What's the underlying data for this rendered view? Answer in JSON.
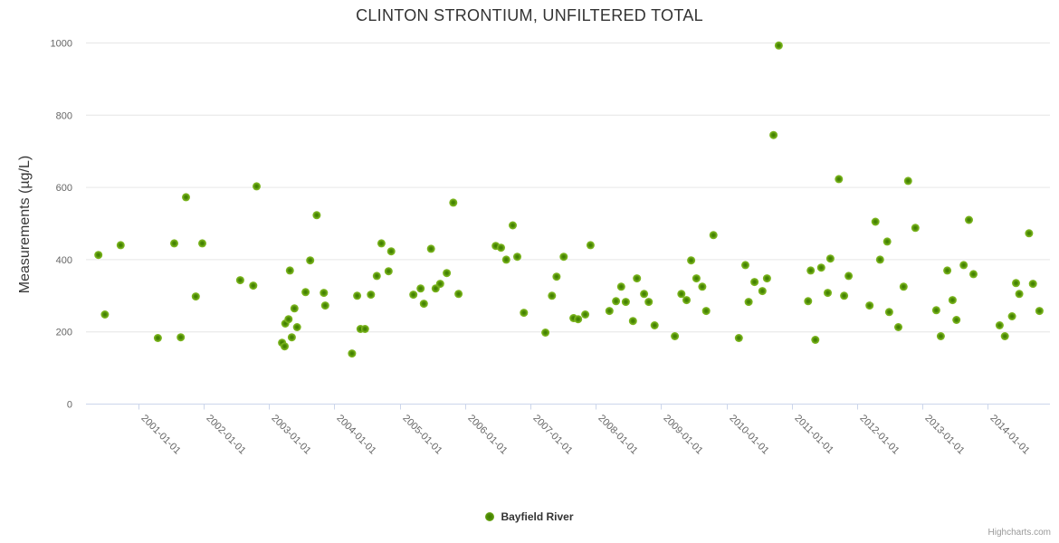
{
  "colors": {
    "background": "#ffffff",
    "grid": "#e6e6e6",
    "axis_line": "#ccd6eb",
    "tick_label": "#666666",
    "title_text": "#333333",
    "marker_outer": "#7cb61f",
    "marker_inner": "#3c7a00",
    "credits_text": "#999999"
  },
  "credits": {
    "label": "Highcharts.com"
  },
  "chart_data": {
    "type": "scatter",
    "title": "CLINTON STRONTIUM, UNFILTERED TOTAL",
    "xlabel": "",
    "ylabel": "Measurements (µg/L)",
    "ylim": [
      0,
      1000
    ],
    "yticks": [
      0,
      200,
      400,
      600,
      800,
      1000
    ],
    "grid": true,
    "legend_position": "bottom-center",
    "xaxis": {
      "min": 2000.2,
      "max": 2014.95,
      "ticks": [
        {
          "year": 2001,
          "label": "2001-01-01"
        },
        {
          "year": 2002,
          "label": "2002-01-01"
        },
        {
          "year": 2003,
          "label": "2003-01-01"
        },
        {
          "year": 2004,
          "label": "2004-01-01"
        },
        {
          "year": 2005,
          "label": "2005-01-01"
        },
        {
          "year": 2006,
          "label": "2006-01-01"
        },
        {
          "year": 2007,
          "label": "2007-01-01"
        },
        {
          "year": 2008,
          "label": "2008-01-01"
        },
        {
          "year": 2009,
          "label": "2009-01-01"
        },
        {
          "year": 2010,
          "label": "2010-01-01"
        },
        {
          "year": 2011,
          "label": "2011-01-01"
        },
        {
          "year": 2012,
          "label": "2012-01-01"
        },
        {
          "year": 2013,
          "label": "2013-01-01"
        },
        {
          "year": 2014,
          "label": "2014-01-01"
        }
      ]
    },
    "series": [
      {
        "name": "Bayfield River",
        "points": [
          [
            2000.39,
            413
          ],
          [
            2000.49,
            248
          ],
          [
            2000.73,
            440
          ],
          [
            2001.3,
            183
          ],
          [
            2001.55,
            445
          ],
          [
            2001.65,
            185
          ],
          [
            2001.73,
            573
          ],
          [
            2001.88,
            298
          ],
          [
            2001.98,
            445
          ],
          [
            2002.56,
            343
          ],
          [
            2002.76,
            328
          ],
          [
            2002.81,
            603
          ],
          [
            2003.2,
            170
          ],
          [
            2003.24,
            160
          ],
          [
            2003.25,
            223
          ],
          [
            2003.3,
            235
          ],
          [
            2003.32,
            370
          ],
          [
            2003.35,
            185
          ],
          [
            2003.39,
            265
          ],
          [
            2003.43,
            213
          ],
          [
            2003.56,
            310
          ],
          [
            2003.63,
            398
          ],
          [
            2003.73,
            523
          ],
          [
            2003.84,
            308
          ],
          [
            2003.86,
            273
          ],
          [
            2004.27,
            140
          ],
          [
            2004.35,
            300
          ],
          [
            2004.4,
            208
          ],
          [
            2004.47,
            208
          ],
          [
            2004.56,
            303
          ],
          [
            2004.65,
            355
          ],
          [
            2004.72,
            445
          ],
          [
            2004.83,
            368
          ],
          [
            2004.87,
            423
          ],
          [
            2005.21,
            303
          ],
          [
            2005.32,
            320
          ],
          [
            2005.37,
            278
          ],
          [
            2005.48,
            430
          ],
          [
            2005.55,
            320
          ],
          [
            2005.62,
            333
          ],
          [
            2005.72,
            363
          ],
          [
            2005.82,
            558
          ],
          [
            2005.9,
            305
          ],
          [
            2006.47,
            438
          ],
          [
            2006.55,
            433
          ],
          [
            2006.63,
            400
          ],
          [
            2006.73,
            495
          ],
          [
            2006.8,
            408
          ],
          [
            2006.9,
            253
          ],
          [
            2007.23,
            198
          ],
          [
            2007.33,
            300
          ],
          [
            2007.4,
            353
          ],
          [
            2007.51,
            408
          ],
          [
            2007.66,
            238
          ],
          [
            2007.73,
            235
          ],
          [
            2007.84,
            248
          ],
          [
            2007.92,
            440
          ],
          [
            2008.21,
            258
          ],
          [
            2008.31,
            285
          ],
          [
            2008.39,
            325
          ],
          [
            2008.46,
            283
          ],
          [
            2008.57,
            230
          ],
          [
            2008.63,
            348
          ],
          [
            2008.74,
            305
          ],
          [
            2008.81,
            283
          ],
          [
            2008.9,
            218
          ],
          [
            2009.21,
            188
          ],
          [
            2009.31,
            305
          ],
          [
            2009.39,
            288
          ],
          [
            2009.46,
            398
          ],
          [
            2009.54,
            348
          ],
          [
            2009.63,
            325
          ],
          [
            2009.69,
            258
          ],
          [
            2009.8,
            468
          ],
          [
            2010.19,
            183
          ],
          [
            2010.29,
            385
          ],
          [
            2010.34,
            283
          ],
          [
            2010.43,
            338
          ],
          [
            2010.55,
            313
          ],
          [
            2010.62,
            348
          ],
          [
            2010.72,
            745
          ],
          [
            2010.8,
            993
          ],
          [
            2011.25,
            285
          ],
          [
            2011.29,
            370
          ],
          [
            2011.36,
            178
          ],
          [
            2011.45,
            378
          ],
          [
            2011.55,
            308
          ],
          [
            2011.59,
            403
          ],
          [
            2011.72,
            623
          ],
          [
            2011.8,
            300
          ],
          [
            2011.87,
            355
          ],
          [
            2012.19,
            273
          ],
          [
            2012.28,
            505
          ],
          [
            2012.35,
            400
          ],
          [
            2012.46,
            450
          ],
          [
            2012.49,
            255
          ],
          [
            2012.63,
            213
          ],
          [
            2012.71,
            325
          ],
          [
            2012.78,
            618
          ],
          [
            2012.89,
            488
          ],
          [
            2013.21,
            260
          ],
          [
            2013.28,
            188
          ],
          [
            2013.38,
            370
          ],
          [
            2013.46,
            288
          ],
          [
            2013.52,
            233
          ],
          [
            2013.63,
            385
          ],
          [
            2013.71,
            510
          ],
          [
            2013.78,
            360
          ],
          [
            2014.18,
            218
          ],
          [
            2014.26,
            188
          ],
          [
            2014.37,
            243
          ],
          [
            2014.43,
            335
          ],
          [
            2014.48,
            305
          ],
          [
            2014.63,
            473
          ],
          [
            2014.69,
            333
          ],
          [
            2014.79,
            258
          ]
        ]
      }
    ]
  }
}
